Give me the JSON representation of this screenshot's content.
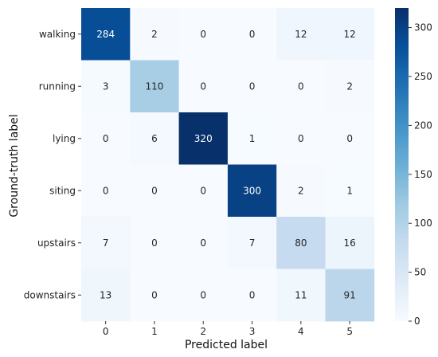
{
  "chart_data": {
    "type": "heatmap",
    "title": "",
    "xlabel": "Predicted label",
    "ylabel": "Ground-truth label",
    "x_tick_labels": [
      "0",
      "1",
      "2",
      "3",
      "4",
      "5"
    ],
    "y_tick_labels": [
      "walking",
      "running",
      "lying",
      "siting",
      "upstairs",
      "downstairs"
    ],
    "values": [
      [
        284,
        2,
        0,
        0,
        12,
        12
      ],
      [
        3,
        110,
        0,
        0,
        0,
        2
      ],
      [
        0,
        6,
        320,
        1,
        0,
        0
      ],
      [
        0,
        0,
        0,
        300,
        2,
        1
      ],
      [
        7,
        0,
        0,
        7,
        80,
        16
      ],
      [
        13,
        0,
        0,
        0,
        11,
        91
      ]
    ],
    "colormap": "Blues",
    "colorbar": {
      "range": [
        0,
        320
      ],
      "ticks": [
        0,
        50,
        100,
        150,
        200,
        250,
        300
      ],
      "tick_labels": [
        "0",
        "50",
        "100",
        "150",
        "200",
        "250",
        "300"
      ]
    },
    "grid": false
  }
}
